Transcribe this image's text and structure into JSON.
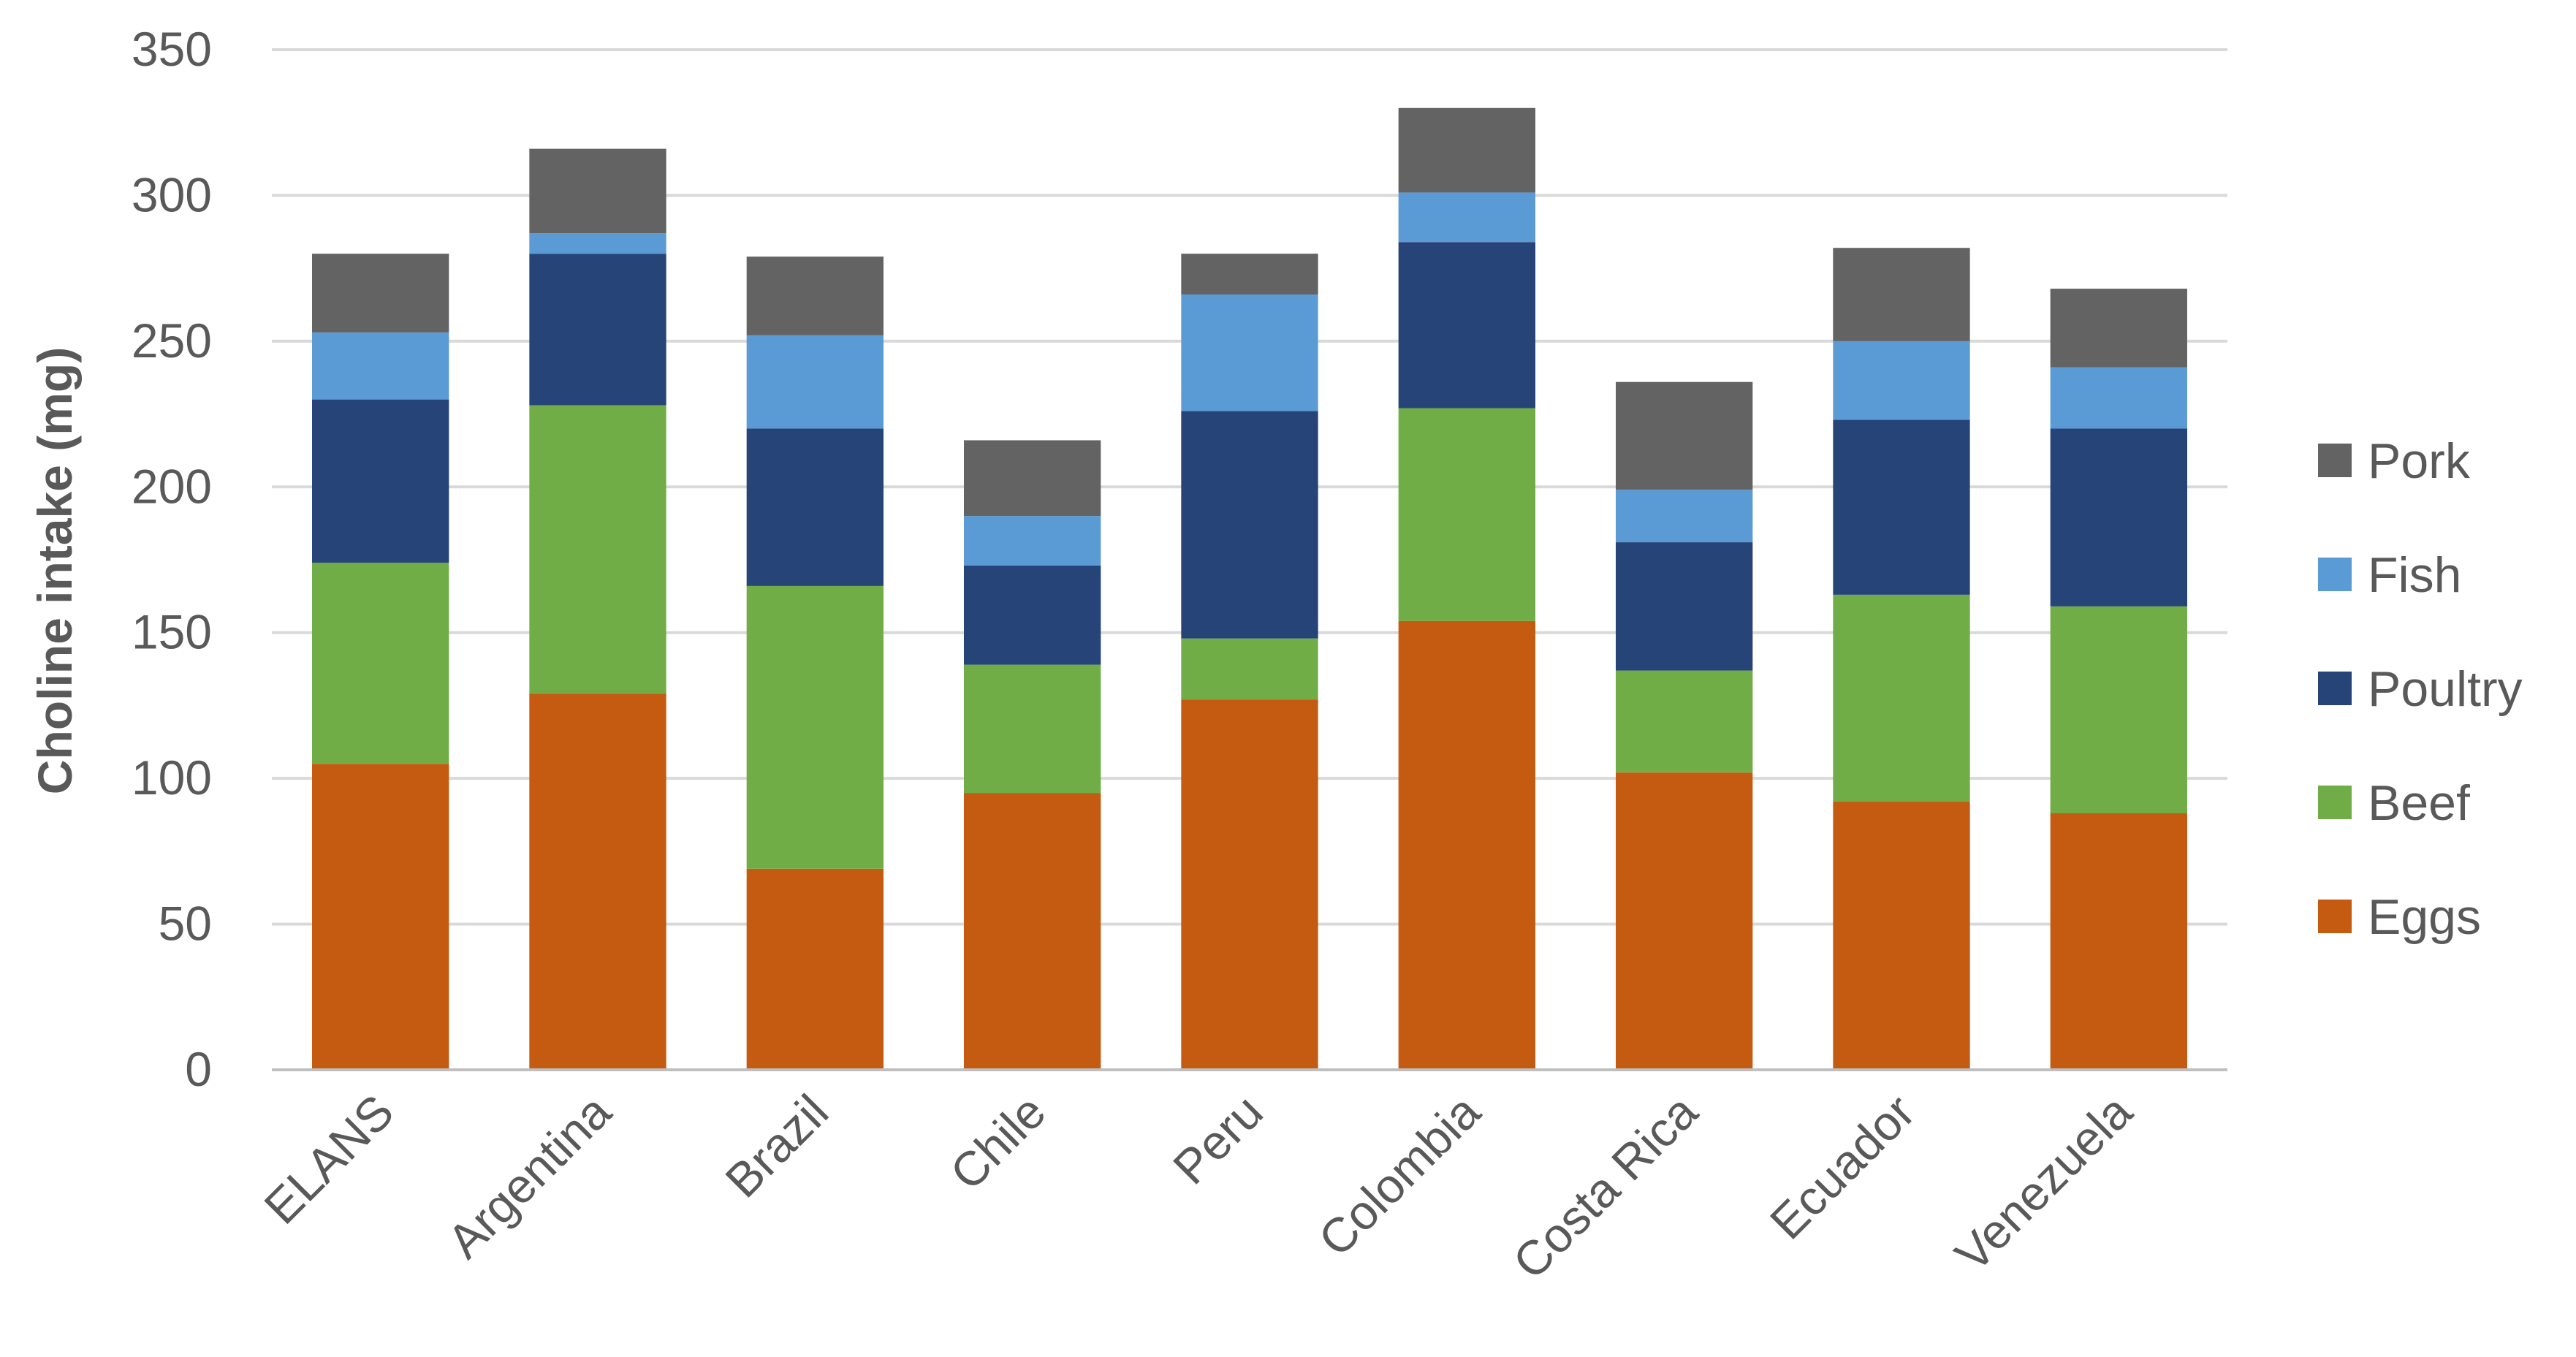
{
  "chart_data": {
    "type": "bar",
    "stacked": true,
    "title": "",
    "xlabel": "",
    "ylabel": "Choline intake (mg)",
    "ylim": [
      0,
      350
    ],
    "yticks": [
      "0",
      "50",
      "100",
      "150",
      "200",
      "250",
      "300",
      "350"
    ],
    "grid": true,
    "legend_position": "right",
    "categories": [
      "ELANS",
      "Argentina",
      "Brazil",
      "Chile",
      "Peru",
      "Colombia",
      "Costa Rica",
      "Ecuador",
      "Venezuela"
    ],
    "series": [
      {
        "name": "Eggs",
        "color": "#C55A11",
        "values": [
          105,
          129,
          69,
          95,
          127,
          154,
          102,
          92,
          88
        ]
      },
      {
        "name": "Beef",
        "color": "#70AD47",
        "values": [
          69,
          99,
          97,
          44,
          21,
          73,
          35,
          71,
          71
        ]
      },
      {
        "name": "Poultry",
        "color": "#264478",
        "values": [
          56,
          52,
          54,
          34,
          78,
          57,
          44,
          60,
          61
        ]
      },
      {
        "name": "Fish",
        "color": "#5B9BD5",
        "values": [
          23,
          7,
          32,
          17,
          40,
          17,
          18,
          27,
          21
        ]
      },
      {
        "name": "Pork",
        "color": "#636363",
        "values": [
          27,
          29,
          27,
          26,
          14,
          29,
          37,
          32,
          27
        ]
      }
    ]
  }
}
